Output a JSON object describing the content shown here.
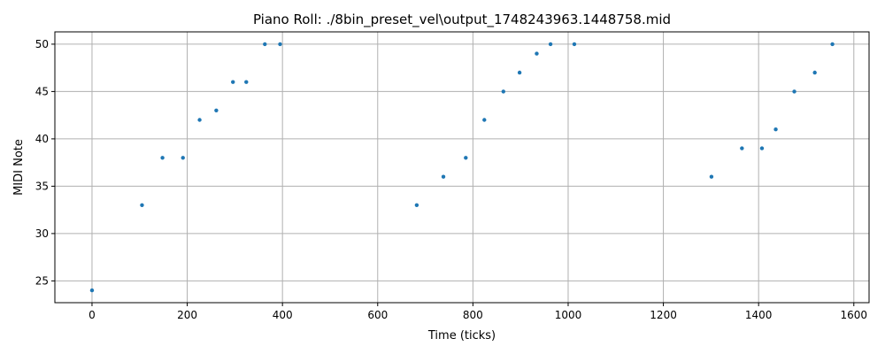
{
  "chart_data": {
    "type": "scatter",
    "title": "Piano Roll: ./8bin_preset_vel\\output_1748243963.1448758.mid",
    "xlabel": "Time (ticks)",
    "ylabel": "MIDI Note",
    "xlim": [
      -78,
      1632
    ],
    "ylim": [
      22.7,
      51.3
    ],
    "xticks": [
      0,
      200,
      400,
      600,
      800,
      1000,
      1200,
      1400,
      1600
    ],
    "yticks": [
      25,
      30,
      35,
      40,
      45,
      50
    ],
    "grid": true,
    "point_color": "#1f77b4",
    "points": [
      {
        "x": 0,
        "y": 24
      },
      {
        "x": 105,
        "y": 33
      },
      {
        "x": 148,
        "y": 38
      },
      {
        "x": 191,
        "y": 38
      },
      {
        "x": 226,
        "y": 42
      },
      {
        "x": 261,
        "y": 43
      },
      {
        "x": 296,
        "y": 46
      },
      {
        "x": 324,
        "y": 46
      },
      {
        "x": 363,
        "y": 50
      },
      {
        "x": 395,
        "y": 50
      },
      {
        "x": 682,
        "y": 33
      },
      {
        "x": 738,
        "y": 36
      },
      {
        "x": 785,
        "y": 38
      },
      {
        "x": 824,
        "y": 42
      },
      {
        "x": 864,
        "y": 45
      },
      {
        "x": 898,
        "y": 47
      },
      {
        "x": 934,
        "y": 49
      },
      {
        "x": 963,
        "y": 50
      },
      {
        "x": 1013,
        "y": 50
      },
      {
        "x": 1301,
        "y": 36
      },
      {
        "x": 1365,
        "y": 39
      },
      {
        "x": 1407,
        "y": 39
      },
      {
        "x": 1436,
        "y": 41
      },
      {
        "x": 1475,
        "y": 45
      },
      {
        "x": 1518,
        "y": 47
      },
      {
        "x": 1555,
        "y": 50
      }
    ]
  }
}
